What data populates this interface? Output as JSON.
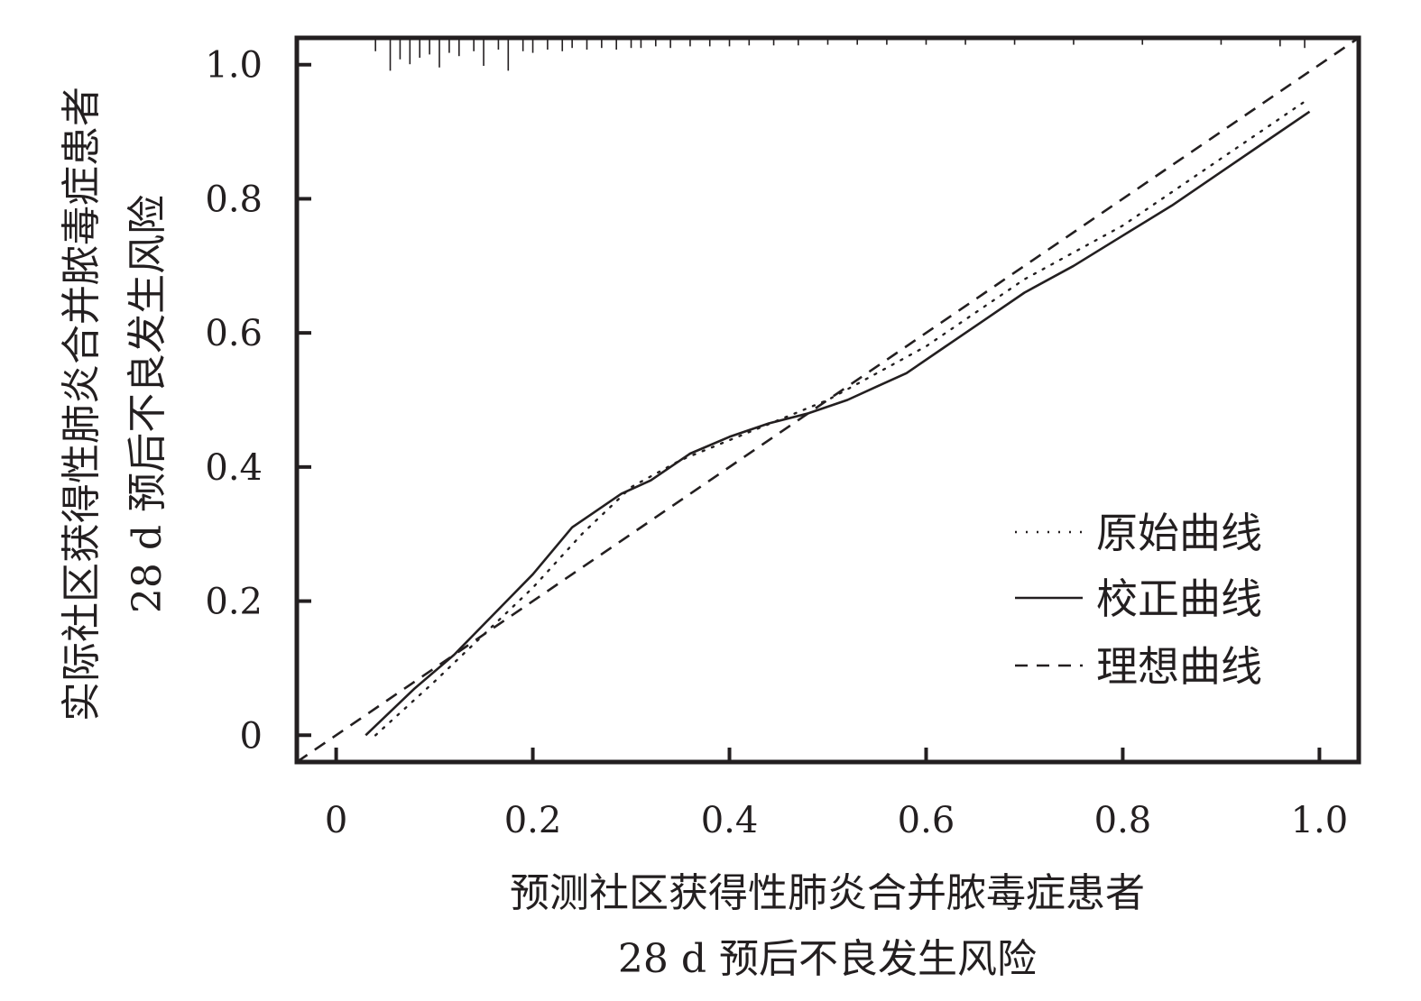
{
  "chart_data": {
    "type": "line",
    "title": "",
    "xlabel": [
      "预测社区获得性肺炎合并脓毒症患者",
      "28 d 预后不良发生风险"
    ],
    "ylabel": [
      "实际社区获得性肺炎合并脓毒症患者",
      "28 d 预后不良发生风险"
    ],
    "xlim": [
      -0.04,
      1.04
    ],
    "ylim": [
      -0.04,
      1.04
    ],
    "x_ticks": [
      0,
      0.2,
      0.4,
      0.6,
      0.8,
      1.0
    ],
    "x_tick_labels": [
      "0",
      "0.2",
      "0.4",
      "0.6",
      "0.8",
      "1.0"
    ],
    "y_ticks": [
      0,
      0.2,
      0.4,
      0.6,
      0.8,
      1.0
    ],
    "y_tick_labels": [
      "0",
      "0.2",
      "0.4",
      "0.6",
      "0.8",
      "1.0"
    ],
    "grid": false,
    "legend": "bottom-right",
    "series": [
      {
        "name": "原始曲线",
        "style": "dotted",
        "x": [
          0.04,
          0.1,
          0.15,
          0.2,
          0.25,
          0.3,
          0.35,
          0.4,
          0.45,
          0.5,
          0.55,
          0.6,
          0.65,
          0.7,
          0.75,
          0.8,
          0.85,
          0.9,
          0.95,
          0.99
        ],
        "y": [
          0.0,
          0.08,
          0.15,
          0.22,
          0.3,
          0.37,
          0.41,
          0.44,
          0.47,
          0.5,
          0.54,
          0.58,
          0.63,
          0.68,
          0.72,
          0.76,
          0.81,
          0.86,
          0.91,
          0.95
        ]
      },
      {
        "name": "校正曲线",
        "style": "solid",
        "x": [
          0.03,
          0.08,
          0.12,
          0.16,
          0.2,
          0.24,
          0.26,
          0.29,
          0.32,
          0.36,
          0.4,
          0.44,
          0.48,
          0.52,
          0.55,
          0.58,
          0.62,
          0.66,
          0.7,
          0.75,
          0.8,
          0.85,
          0.9,
          0.95,
          0.99
        ],
        "y": [
          0.0,
          0.07,
          0.12,
          0.18,
          0.24,
          0.31,
          0.33,
          0.36,
          0.38,
          0.42,
          0.445,
          0.465,
          0.48,
          0.5,
          0.52,
          0.54,
          0.58,
          0.62,
          0.66,
          0.7,
          0.745,
          0.79,
          0.84,
          0.89,
          0.93
        ]
      },
      {
        "name": "理想曲线",
        "style": "dashed",
        "x": [
          -0.04,
          1.04
        ],
        "y": [
          -0.04,
          1.04
        ]
      }
    ],
    "rug_top": [
      0.04,
      0.055,
      0.065,
      0.075,
      0.085,
      0.095,
      0.105,
      0.115,
      0.125,
      0.14,
      0.15,
      0.165,
      0.175,
      0.19,
      0.2,
      0.215,
      0.23,
      0.24,
      0.255,
      0.27,
      0.285,
      0.3,
      0.31,
      0.325,
      0.34,
      0.36,
      0.38,
      0.4,
      0.42,
      0.445,
      0.47,
      0.5,
      0.53,
      0.56,
      0.6,
      0.64,
      0.69,
      0.75,
      0.82,
      0.9,
      0.96,
      0.985
    ],
    "rug_heights": [
      0.3,
      0.9,
      0.55,
      0.7,
      0.5,
      0.4,
      0.8,
      0.35,
      0.45,
      0.3,
      0.75,
      0.25,
      0.9,
      0.3,
      0.35,
      0.25,
      0.3,
      0.2,
      0.25,
      0.2,
      0.25,
      0.2,
      0.2,
      0.15,
      0.2,
      0.15,
      0.15,
      0.15,
      0.12,
      0.12,
      0.12,
      0.1,
      0.1,
      0.1,
      0.1,
      0.1,
      0.1,
      0.1,
      0.1,
      0.1,
      0.15,
      0.2
    ]
  }
}
